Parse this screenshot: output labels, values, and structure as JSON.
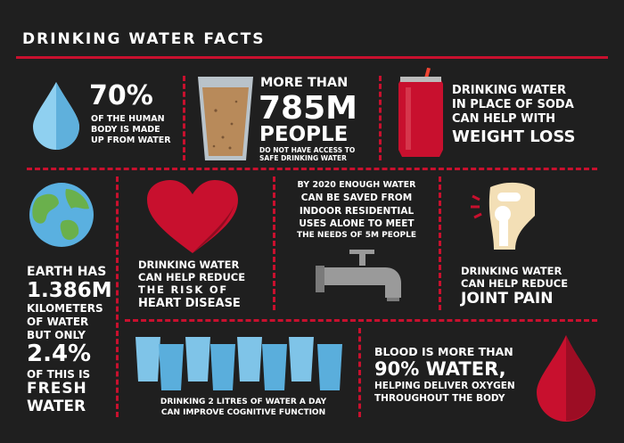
{
  "header": {
    "title": "DRINKING WATER FACTS"
  },
  "facts": {
    "body_water": {
      "percent": "70%",
      "line1": "OF THE HUMAN",
      "line2": "BODY IS MADE",
      "line3": "UP FROM WATER"
    },
    "access": {
      "line1": "MORE THAN",
      "number": "785M",
      "word": "PEOPLE",
      "sub1": "DO NOT HAVE ACCESS TO",
      "sub2": "SAFE DRINKING WATER"
    },
    "soda": {
      "line1": "DRINKING WATER",
      "line2": "IN PLACE OF SODA",
      "line3": "CAN HELP WITH",
      "big": "WEIGHT LOSS"
    },
    "earth": {
      "line1": "EARTH HAS",
      "big1": "1.386M",
      "line2": "KILOMETERS",
      "line3": "OF WATER",
      "line4": "BUT ONLY",
      "big2": "2.4%",
      "line5": "OF THIS IS",
      "big3": "FRESH",
      "big4": "WATER"
    },
    "heart": {
      "line1": "DRINKING WATER",
      "line2": "CAN HELP REDUCE",
      "line3": "THE RISK OF",
      "big": "HEART DISEASE"
    },
    "saving": {
      "line1": "BY 2020 ENOUGH WATER",
      "line2": "CAN BE SAVED FROM",
      "line3": "INDOOR RESIDENTIAL",
      "line4": "USES ALONE TO MEET",
      "line5": "THE NEEDS OF 5M PEOPLE"
    },
    "joint": {
      "line1": "DRINKING WATER",
      "line2": "CAN HELP REDUCE",
      "big": "JOINT PAIN"
    },
    "cognitive": {
      "line1": "DRINKING 2 LITRES OF WATER A DAY",
      "line2": "CAN IMPROVE COGNITIVE FUNCTION"
    },
    "blood": {
      "line1": "BLOOD IS MORE THAN",
      "big": "90% WATER,",
      "line2": "HELPING DELIVER OXYGEN",
      "line3": "THROUGHOUT THE BODY"
    }
  },
  "icons": [
    "water-drop-icon",
    "water-glass-icon",
    "soda-can-icon",
    "earth-globe-icon",
    "heart-icon",
    "water-tap-icon",
    "knee-joint-icon",
    "water-glasses-icon",
    "blood-drop-icon"
  ],
  "colors": {
    "background": "#1f1f1f",
    "accent": "#c8102e",
    "water": "#7fc4e8"
  }
}
